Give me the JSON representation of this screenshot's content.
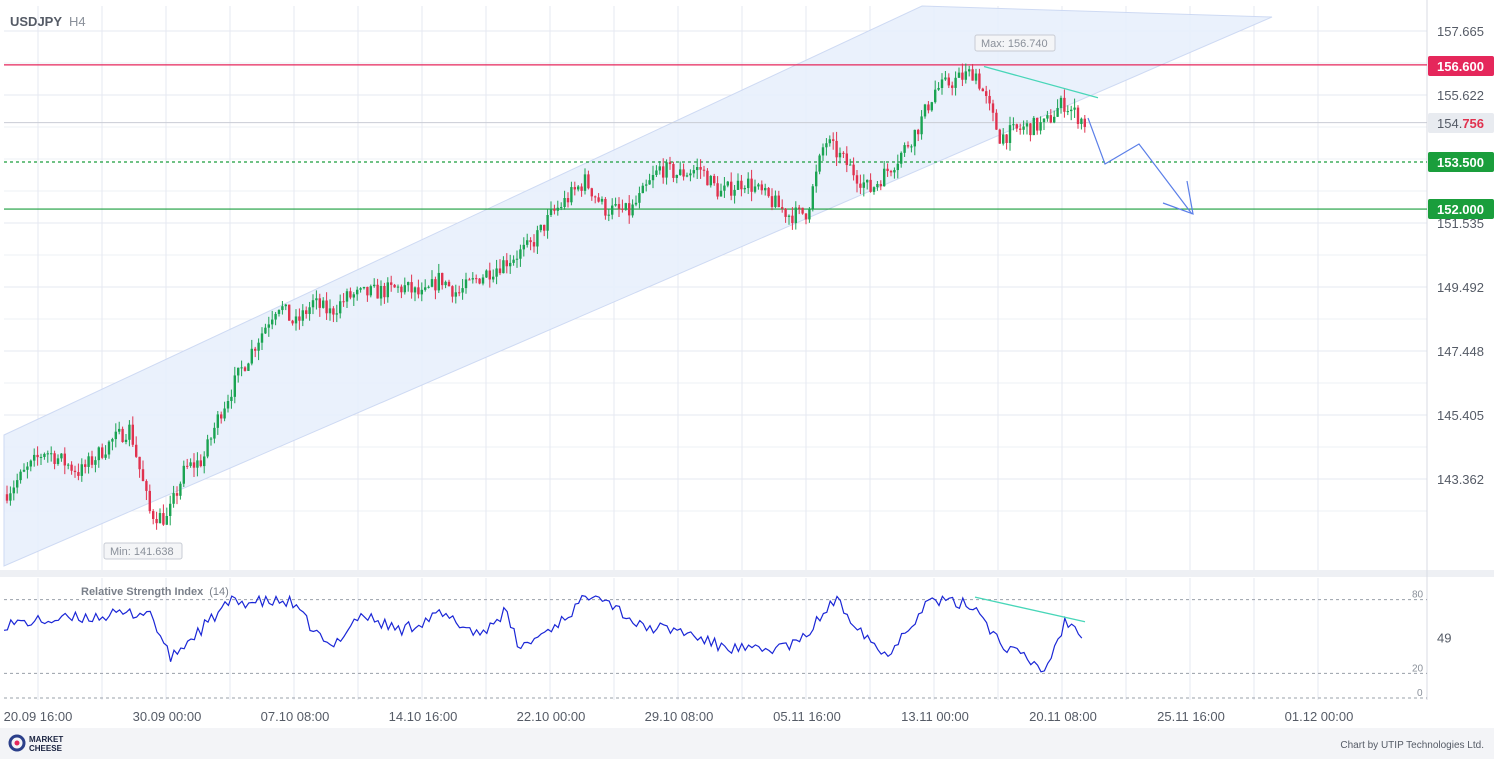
{
  "header": {
    "symbol": "USDJPY",
    "timeframe": "H4"
  },
  "chart_data": {
    "type": "candlestick",
    "symbol": "USDJPY",
    "timeframe": "H4",
    "y_ticks": [
      "157.665",
      "155.622",
      "151.535",
      "149.492",
      "147.448",
      "145.405",
      "143.362"
    ],
    "x_ticks": [
      "20.09 16:00",
      "30.09 00:00",
      "07.10 08:00",
      "14.10 16:00",
      "22.10 00:00",
      "29.10 08:00",
      "05.11 16:00",
      "13.11 00:00",
      "20.11 08:00",
      "25.11 16:00",
      "01.12 00:00"
    ],
    "levels": [
      {
        "label": "156.600",
        "value": 156.6,
        "style": "solid",
        "color": "#e5275b"
      },
      {
        "label": "153.500",
        "value": 153.5,
        "style": "dashed",
        "color": "#1a9e3c"
      },
      {
        "label": "152.000",
        "value": 152.0,
        "style": "solid",
        "color": "#1a9e3c"
      }
    ],
    "current_price": {
      "prefix": "154.",
      "suffix": "756",
      "value": 154.756
    },
    "max_label": "Max: 156.740",
    "min_label": "Min: 141.638",
    "price_path": [
      [
        "20.09",
        142.9
      ],
      [
        "23.09",
        144.3
      ],
      [
        "25.09",
        143.6
      ],
      [
        "27.09",
        144.6
      ],
      [
        "28.09",
        145.0
      ],
      [
        "29.09",
        142.3
      ],
      [
        "30.09",
        142.1
      ],
      [
        "01.10",
        143.7
      ],
      [
        "02.10",
        144.0
      ],
      [
        "03.10",
        145.5
      ],
      [
        "04.10",
        146.8
      ],
      [
        "07.10",
        149.0
      ],
      [
        "08.10",
        148.3
      ],
      [
        "09.10",
        149.0
      ],
      [
        "10.10",
        148.7
      ],
      [
        "11.10",
        149.2
      ],
      [
        "14.10",
        149.5
      ],
      [
        "15.10",
        149.2
      ],
      [
        "16.10",
        149.8
      ],
      [
        "17.10",
        149.3
      ],
      [
        "18.10",
        149.8
      ],
      [
        "21.10",
        150.8
      ],
      [
        "22.10",
        151.8
      ],
      [
        "23.10",
        152.9
      ],
      [
        "24.10",
        152.0
      ],
      [
        "25.10",
        151.9
      ],
      [
        "28.10",
        153.3
      ],
      [
        "29.10",
        153.1
      ],
      [
        "30.10",
        153.3
      ],
      [
        "31.10",
        152.5
      ],
      [
        "01.11",
        152.9
      ],
      [
        "04.11",
        151.8
      ],
      [
        "05.11",
        151.9
      ],
      [
        "06.11",
        154.2
      ],
      [
        "07.11",
        153.5
      ],
      [
        "08.11",
        152.6
      ],
      [
        "11.11",
        153.7
      ],
      [
        "12.11",
        154.6
      ],
      [
        "13.11",
        155.8
      ],
      [
        "14.11",
        156.4
      ],
      [
        "15.11",
        154.3
      ],
      [
        "18.11",
        154.6
      ],
      [
        "19.11",
        154.7
      ],
      [
        "20.11",
        155.4
      ],
      [
        "21.11",
        154.756
      ]
    ],
    "rsi": {
      "name": "Relative Strength Index",
      "period": "(14)",
      "value": "49",
      "levels": [
        "80",
        "20",
        "0"
      ]
    }
  },
  "footer": {
    "logo_line1": "MARKET",
    "logo_line2": "CHEESE",
    "credit": "Chart by UTIP Technologies Ltd."
  },
  "colors": {
    "bull": "#1aa352",
    "bear": "#e0324f",
    "channel": "#e8f0fc",
    "forecast": "#5b7fe8",
    "divergence": "#48d6b8",
    "rsi_line": "#1b27d6"
  }
}
